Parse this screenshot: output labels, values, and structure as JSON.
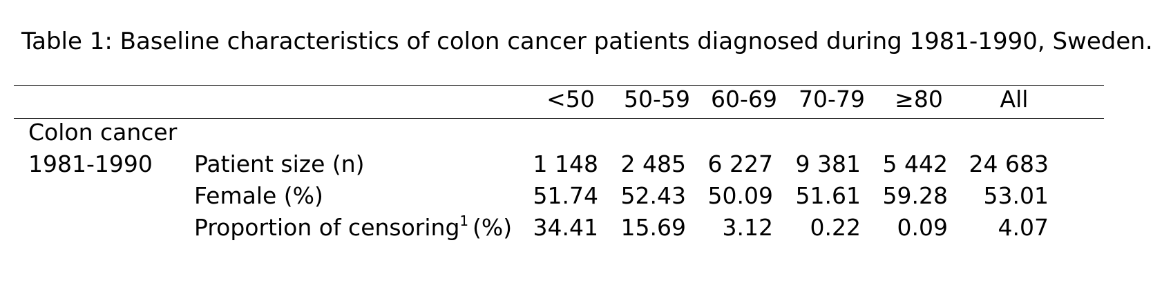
{
  "caption": "Table 1: Baseline characteristics of colon cancer patients diagnosed during 1981-1990, Sweden.",
  "table": {
    "columns": [
      "<50",
      "50-59",
      "60-69",
      "70-79",
      "≥80",
      "All"
    ],
    "group_label": "Colon cancer",
    "period_label": "1981-1990",
    "rows": [
      {
        "label": "Patient size (n)",
        "values": [
          "1 148",
          "2 485",
          "6 227",
          "9 381",
          "5 442",
          "24 683"
        ]
      },
      {
        "label": "Female (%)",
        "values": [
          "51.74",
          "52.43",
          "50.09",
          "51.61",
          "59.28",
          "53.01"
        ]
      },
      {
        "label": "Proportion of censoring",
        "footnote": "1",
        "unit": "(%)",
        "values": [
          "34.41",
          "15.69",
          "3.12",
          "0.22",
          "0.09",
          "4.07"
        ]
      }
    ]
  }
}
